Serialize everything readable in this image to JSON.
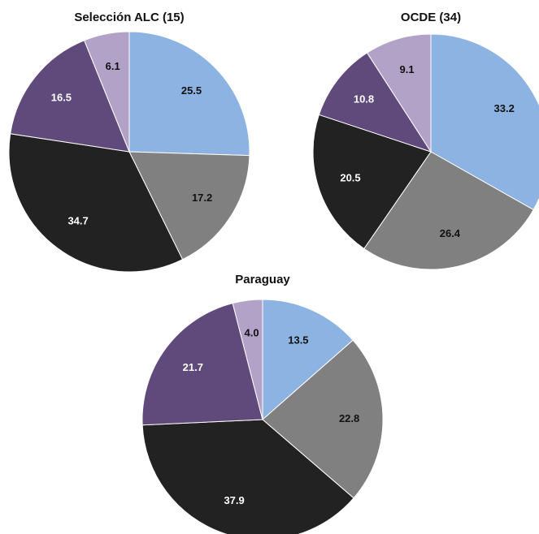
{
  "chart_data": [
    {
      "type": "pie",
      "title": "Selección ALC (15)",
      "values": [
        25.5,
        17.2,
        34.7,
        16.5,
        6.1
      ],
      "labels": [
        "25.5",
        "17.2",
        "34.7",
        "16.5",
        "6.1"
      ],
      "colors": [
        "#8db3e2",
        "#808080",
        "#222222",
        "#604a7b",
        "#b3a2c7"
      ],
      "label_colors": [
        "#111111",
        "#111111",
        "#ffffff",
        "#ffffff",
        "#111111"
      ]
    },
    {
      "type": "pie",
      "title": "OCDE (34)",
      "values": [
        33.2,
        26.4,
        20.5,
        10.8,
        9.1
      ],
      "labels": [
        "33.2",
        "26.4",
        "20.5",
        "10.8",
        "9.1"
      ],
      "colors": [
        "#8db3e2",
        "#808080",
        "#222222",
        "#604a7b",
        "#b3a2c7"
      ],
      "label_colors": [
        "#111111",
        "#111111",
        "#ffffff",
        "#ffffff",
        "#111111"
      ]
    },
    {
      "type": "pie",
      "title": "Paraguay",
      "values": [
        13.5,
        22.8,
        37.9,
        21.7,
        4.0
      ],
      "labels": [
        "13.5",
        "22.8",
        "37.9",
        "21.7",
        "4.0"
      ],
      "colors": [
        "#8db3e2",
        "#808080",
        "#222222",
        "#604a7b",
        "#b3a2c7"
      ],
      "label_colors": [
        "#111111",
        "#111111",
        "#ffffff",
        "#ffffff",
        "#111111"
      ]
    }
  ]
}
